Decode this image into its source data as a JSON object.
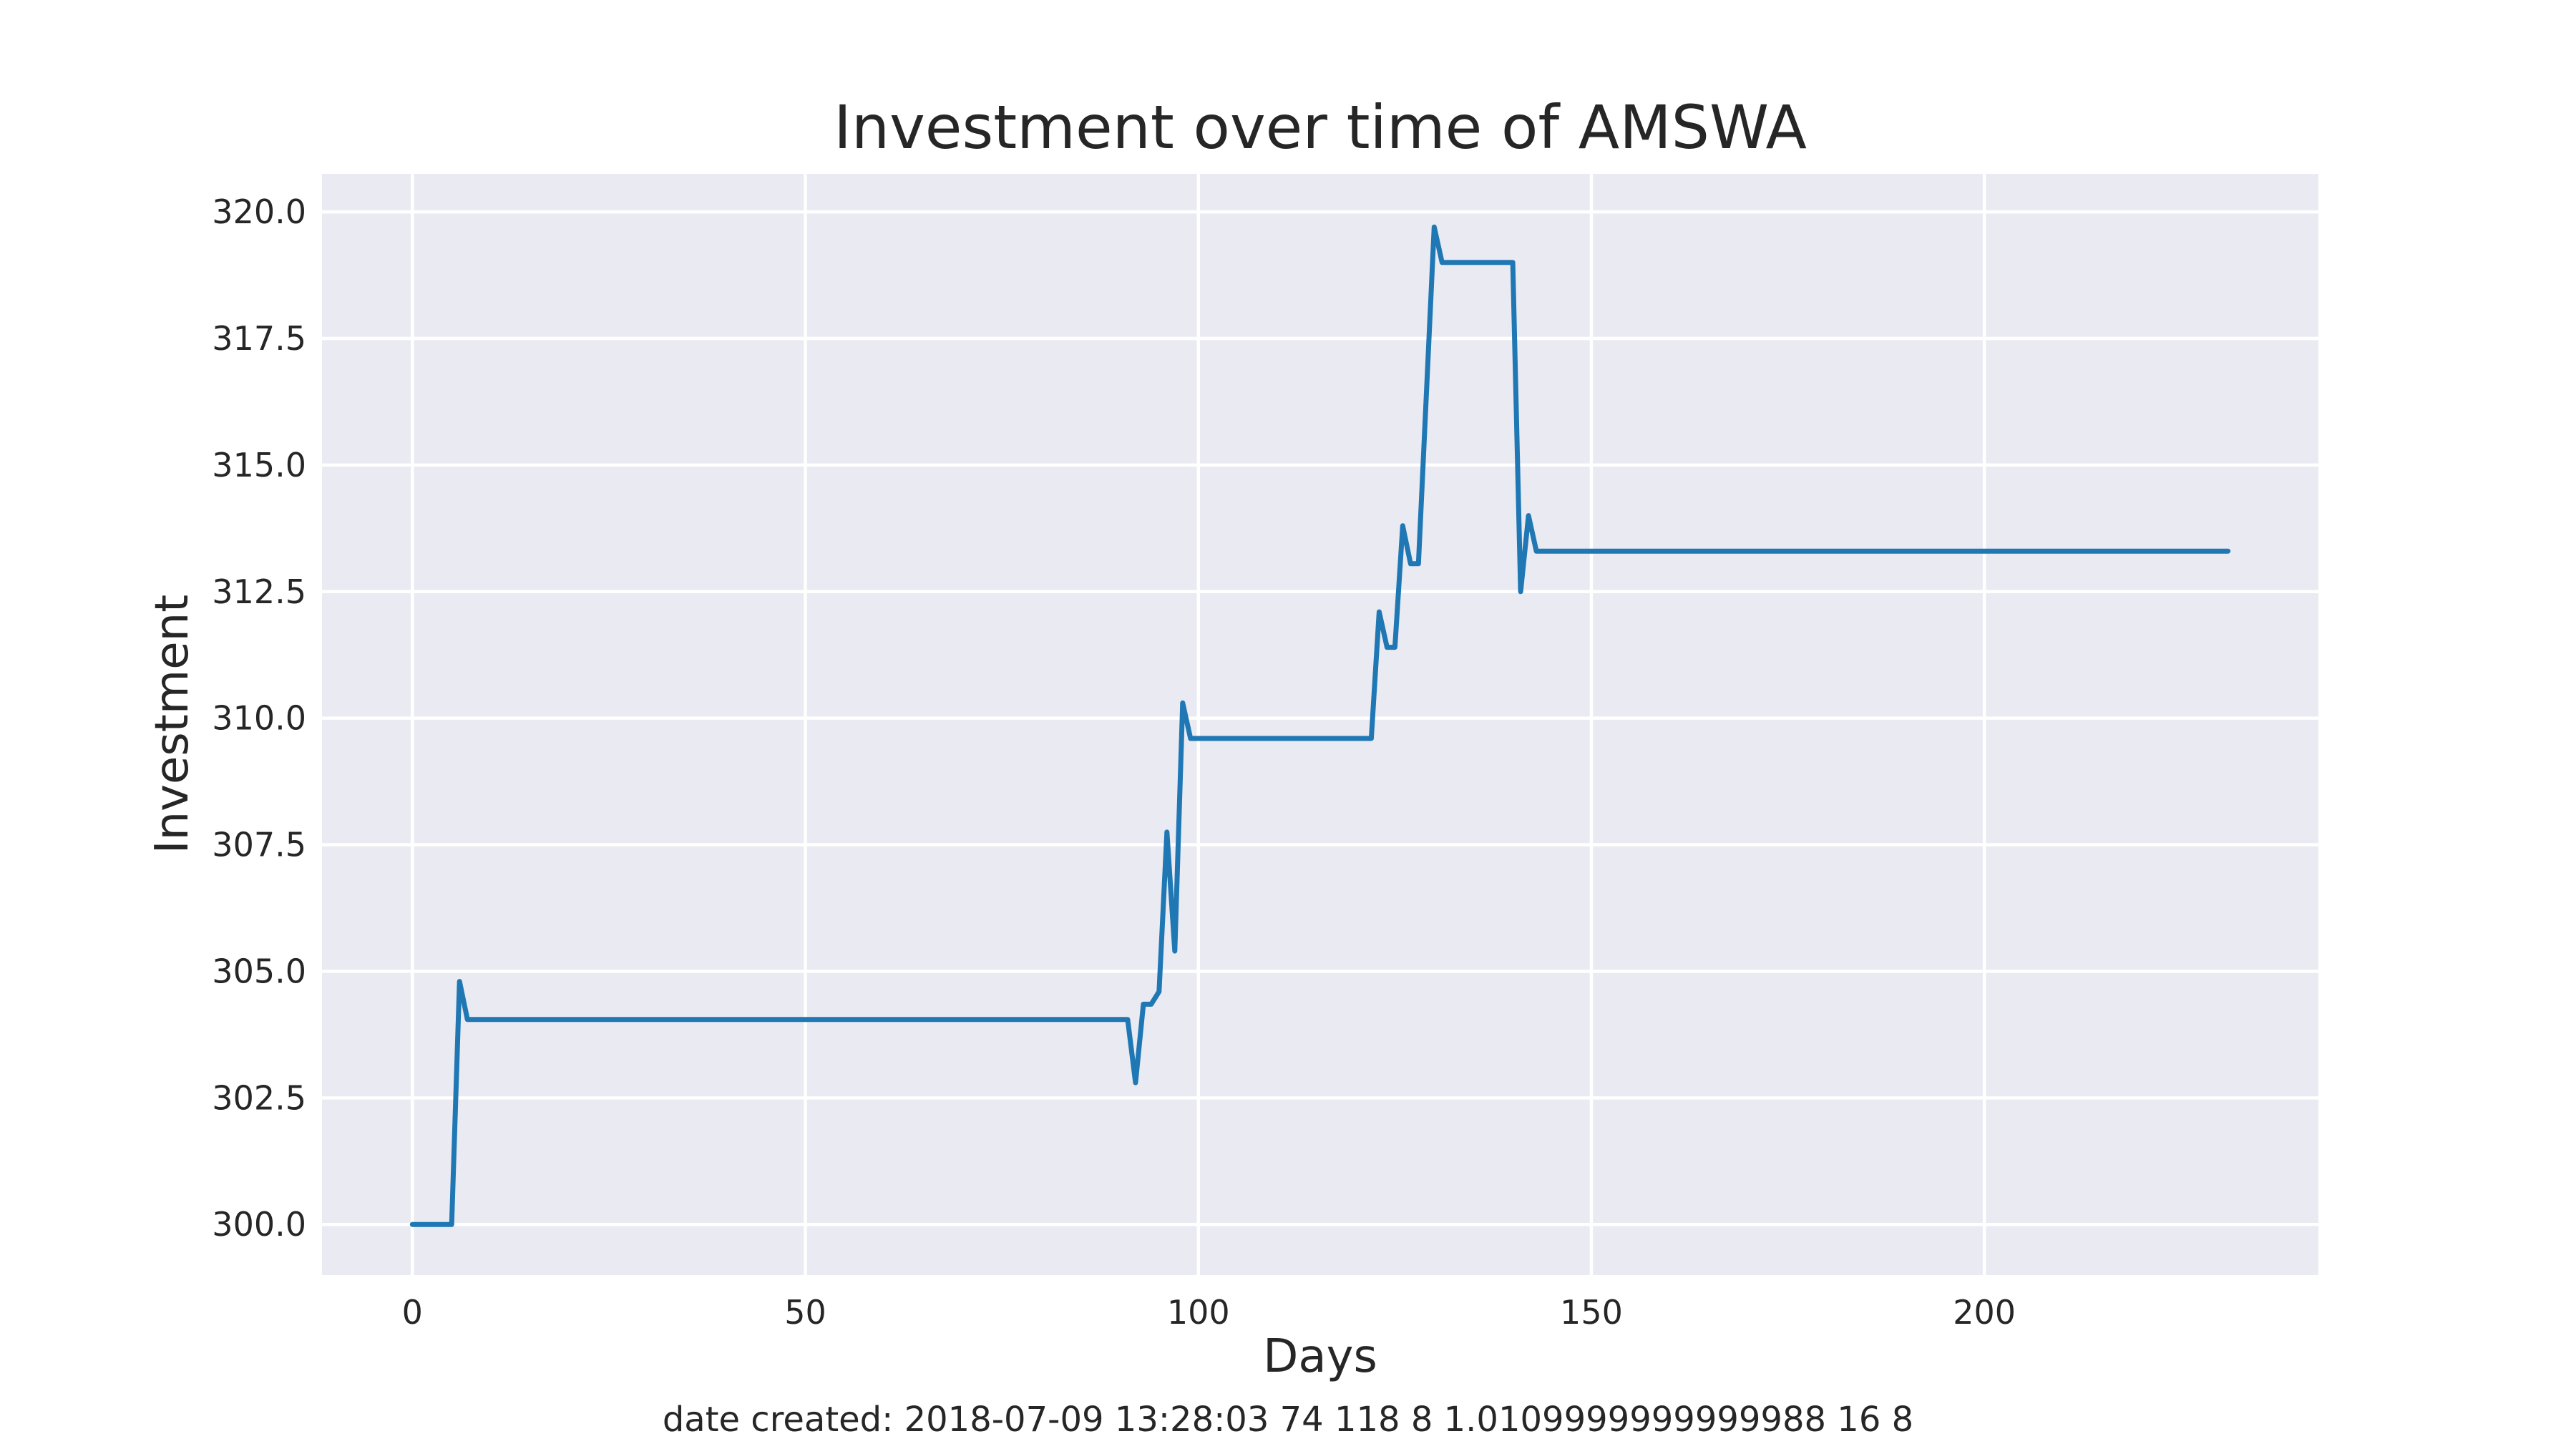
{
  "chart_data": {
    "type": "line",
    "title": "Investment over time of AMSWA",
    "xlabel": "Days",
    "ylabel": "Investment",
    "xlim": [
      -11.5,
      242.5
    ],
    "ylim": [
      299.0,
      320.75
    ],
    "xticks": [
      0,
      50,
      100,
      150,
      200
    ],
    "yticks": [
      300.0,
      302.5,
      305.0,
      307.5,
      310.0,
      312.5,
      315.0,
      317.5,
      320.0
    ],
    "grid": true,
    "series": [
      {
        "color": "#1f77b4",
        "x": [
          0,
          5,
          6,
          7,
          91,
          92,
          93,
          94,
          95,
          96,
          97,
          98,
          99,
          122,
          123,
          124,
          125,
          126,
          127,
          128,
          130,
          131,
          140,
          141,
          142,
          143,
          231
        ],
        "y": [
          300.0,
          300.0,
          304.8,
          304.05,
          304.05,
          302.8,
          304.35,
          304.35,
          304.6,
          307.75,
          305.4,
          310.3,
          309.6,
          309.6,
          312.1,
          311.4,
          311.4,
          313.8,
          313.05,
          313.05,
          319.7,
          319.0,
          319.0,
          312.5,
          314.0,
          313.3,
          313.3
        ]
      }
    ],
    "caption": "date created: 2018-07-09 13:28:03 74 118 8 1.0109999999999988 16 8"
  }
}
